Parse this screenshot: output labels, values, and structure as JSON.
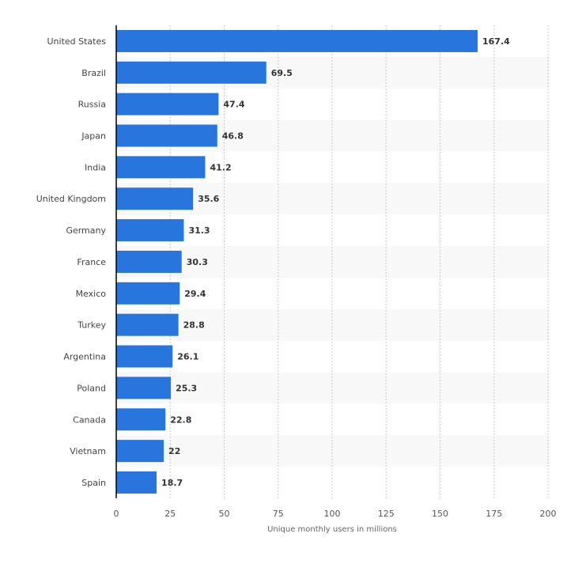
{
  "chart_data": {
    "type": "bar",
    "orientation": "horizontal",
    "categories": [
      "United States",
      "Brazil",
      "Russia",
      "Japan",
      "India",
      "United Kingdom",
      "Germany",
      "France",
      "Mexico",
      "Turkey",
      "Argentina",
      "Poland",
      "Canada",
      "Vietnam",
      "Spain"
    ],
    "values": [
      167.4,
      69.5,
      47.4,
      46.8,
      41.2,
      35.6,
      31.3,
      30.3,
      29.4,
      28.8,
      26.1,
      25.3,
      22.8,
      22,
      18.7
    ],
    "xlabel": "Unique monthly users in millions",
    "ylabel": "",
    "xlim": [
      0,
      200
    ],
    "xticks": [
      0,
      25,
      50,
      75,
      100,
      125,
      150,
      175,
      200
    ],
    "grid": true,
    "bar_color": "#2876dd"
  }
}
